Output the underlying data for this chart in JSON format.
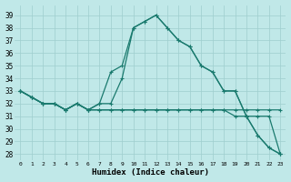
{
  "xlabel": "Humidex (Indice chaleur)",
  "background_color": "#c0e8e8",
  "grid_color": "#9ecece",
  "line_color": "#1a7a6e",
  "x_values": [
    0,
    1,
    2,
    3,
    4,
    5,
    6,
    7,
    8,
    9,
    10,
    11,
    12,
    13,
    14,
    15,
    16,
    17,
    18,
    19,
    20,
    21,
    22,
    23
  ],
  "line_peak": [
    33,
    32.5,
    32,
    32,
    31.5,
    32,
    31.5,
    32,
    34.5,
    35,
    38,
    38.5,
    39,
    38,
    37,
    36.5,
    35,
    34.5,
    33,
    33,
    31,
    29.5,
    28.5,
    28
  ],
  "line_peak2": [
    33,
    32.5,
    32,
    32,
    31.5,
    32,
    31.5,
    32,
    32,
    34,
    38,
    38.5,
    39,
    38,
    37,
    36.5,
    35,
    34.5,
    33,
    33,
    31,
    29.5,
    28.5,
    28
  ],
  "line_decline1": [
    33,
    32.5,
    32,
    32,
    31.5,
    32,
    31.5,
    31.5,
    31.5,
    31.5,
    31.5,
    31.5,
    31.5,
    31.5,
    31.5,
    31.5,
    31.5,
    31.5,
    31.5,
    31,
    31,
    31,
    31,
    28
  ],
  "line_flat": [
    33,
    32.5,
    32,
    32,
    31.5,
    32,
    31.5,
    31.5,
    31.5,
    31.5,
    31.5,
    31.5,
    31.5,
    31.5,
    31.5,
    31.5,
    31.5,
    31.5,
    31.5,
    31.5,
    31.5,
    31.5,
    31.5,
    31.5
  ],
  "ylim": [
    27.5,
    39.8
  ],
  "xlim": [
    -0.5,
    23.5
  ],
  "yticks": [
    28,
    29,
    30,
    31,
    32,
    33,
    34,
    35,
    36,
    37,
    38,
    39
  ],
  "xticks": [
    0,
    1,
    2,
    3,
    4,
    5,
    6,
    7,
    8,
    9,
    10,
    11,
    12,
    13,
    14,
    15,
    16,
    17,
    18,
    19,
    20,
    21,
    22,
    23
  ]
}
